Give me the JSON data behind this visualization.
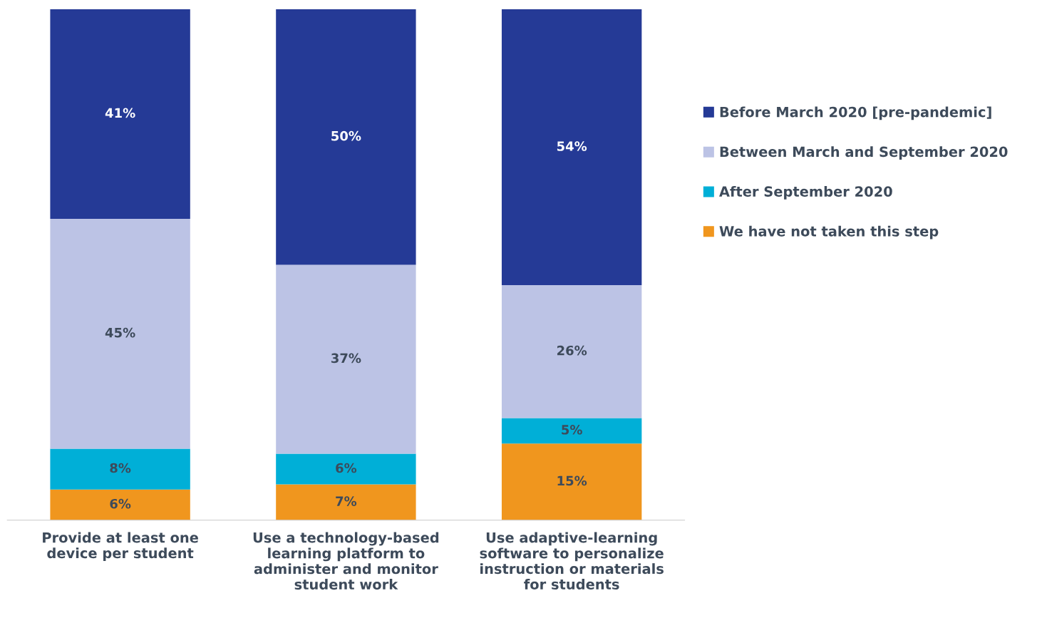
{
  "chart_data": {
    "type": "bar",
    "stacked": true,
    "legend": "right",
    "grid": false,
    "categories": [
      "Provide at least one\ndevice per student",
      "Use a technology-based\nlearning platform to\nadminister and monitor\nstudent work",
      "Use adaptive-learning\nsoftware to personalize\ninstruction or materials\nfor students"
    ],
    "series": [
      {
        "name": "We have not taken this step",
        "color": "#f0961e",
        "values": [
          6,
          7,
          15
        ],
        "value_labels": [
          "6%",
          "7%",
          "15%"
        ]
      },
      {
        "name": "After September 2020",
        "color": "#00afd7",
        "values": [
          8,
          6,
          5
        ],
        "value_labels": [
          "8%",
          "6%",
          "5%"
        ]
      },
      {
        "name": "Between March and September 2020",
        "color": "#bcc3e5",
        "values": [
          45,
          37,
          26
        ],
        "value_labels": [
          "45%",
          "37%",
          "26%"
        ]
      },
      {
        "name": "Before March 2020 [pre-pandemic]",
        "color": "#253a96",
        "values": [
          41,
          50,
          54
        ],
        "value_labels": [
          "41%",
          "50%",
          "54%"
        ]
      }
    ]
  }
}
